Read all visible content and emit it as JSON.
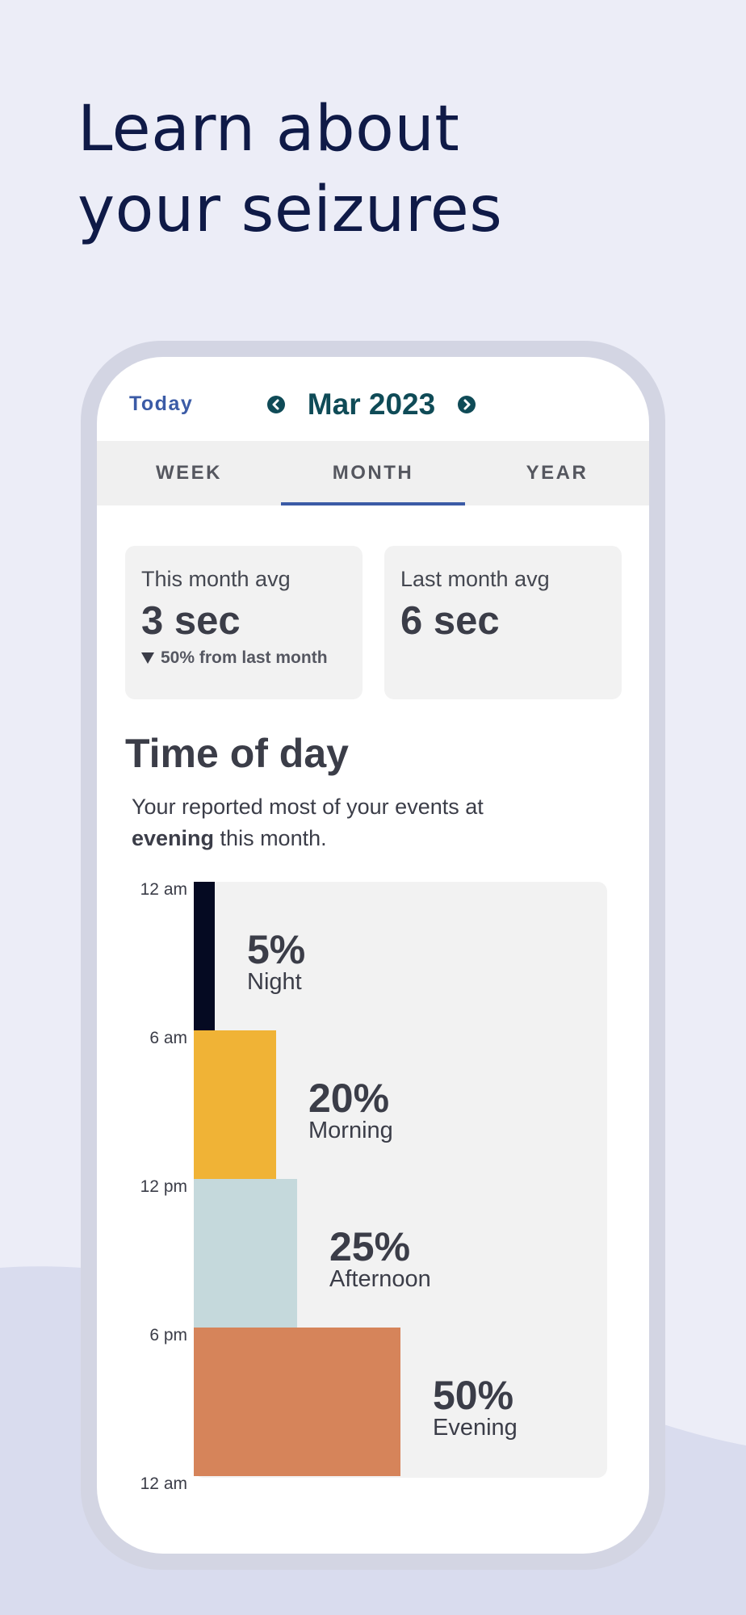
{
  "headline": {
    "line1": "Learn about",
    "line2": "your seizures"
  },
  "topbar": {
    "today_label": "Today",
    "month_label": "Mar 2023",
    "prev_icon": "chevron-left-icon",
    "next_icon": "chevron-right-icon"
  },
  "tabs": [
    {
      "label": "WEEK",
      "active": false
    },
    {
      "label": "MONTH",
      "active": true
    },
    {
      "label": "YEAR",
      "active": false
    }
  ],
  "stats": {
    "this_month": {
      "label": "This month avg",
      "value": "3 sec",
      "delta": "50% from last month",
      "delta_icon": "triangle-down-icon"
    },
    "last_month": {
      "label": "Last month avg",
      "value": "6 sec"
    }
  },
  "time_of_day": {
    "title": "Time of day",
    "desc_prefix": "Your reported most of your events at",
    "desc_bold": "evening",
    "desc_suffix": "this month."
  },
  "chart_data": {
    "type": "bar",
    "orientation": "horizontal",
    "y_ticks": [
      "12 am",
      "6 am",
      "12 pm",
      "6 pm",
      "12 am"
    ],
    "categories": [
      "Night",
      "Morning",
      "Afternoon",
      "Evening"
    ],
    "values": [
      5,
      20,
      25,
      50
    ],
    "value_labels": [
      "5%",
      "20%",
      "25%",
      "50%"
    ],
    "colors": [
      "#050a22",
      "#f0b336",
      "#c5d9dc",
      "#d6845a"
    ],
    "xlim": [
      0,
      100
    ]
  },
  "colors": {
    "background": "#ecedf7",
    "headline": "#0f1a47",
    "accent": "#3b5ba6",
    "month_title": "#0f4b57"
  }
}
